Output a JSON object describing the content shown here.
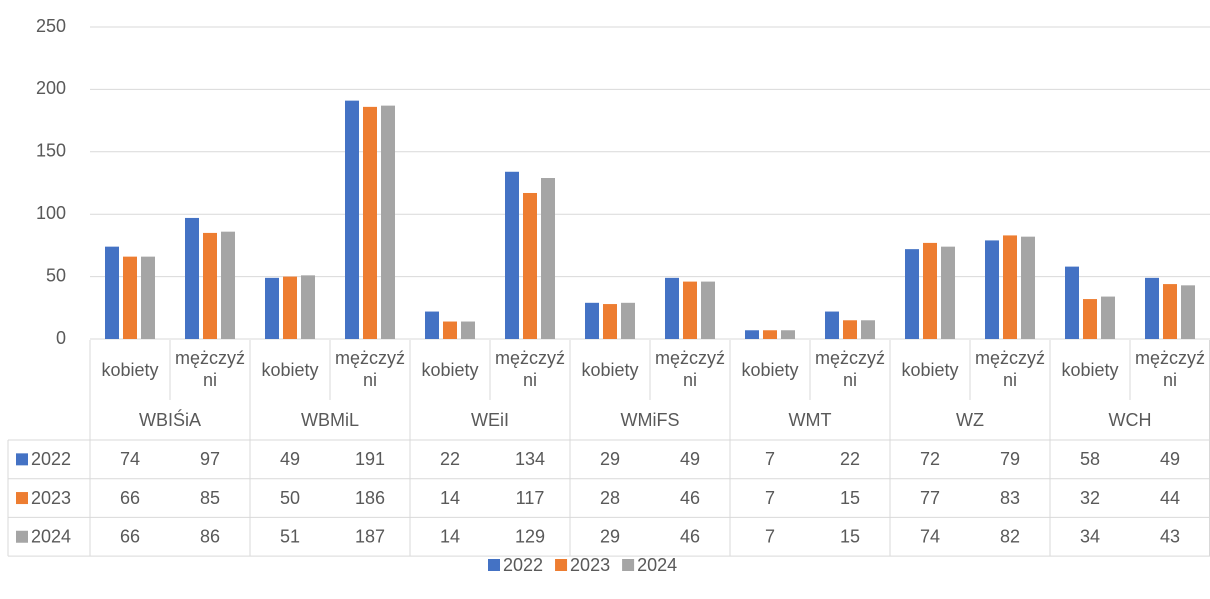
{
  "chart_data": {
    "type": "bar",
    "categories": [
      "kobiety",
      "mężczyźni",
      "kobiety",
      "mężczyźni",
      "kobiety",
      "mężczyźni",
      "kobiety",
      "mężczyźni",
      "kobiety",
      "mężczyźni",
      "kobiety",
      "mężczyźni",
      "kobiety",
      "mężczyźni"
    ],
    "groups": [
      "WBIŚiA",
      "WBMiL",
      "WEiI",
      "WMiFS",
      "WMT",
      "WZ",
      "WCH"
    ],
    "series": [
      {
        "name": "2022",
        "color": "#4472c4",
        "values": [
          74,
          97,
          49,
          191,
          22,
          134,
          29,
          49,
          7,
          22,
          72,
          79,
          58,
          49
        ]
      },
      {
        "name": "2023",
        "color": "#ed7d31",
        "values": [
          66,
          85,
          50,
          186,
          14,
          117,
          28,
          46,
          7,
          15,
          77,
          83,
          32,
          44
        ]
      },
      {
        "name": "2024",
        "color": "#a5a5a5",
        "values": [
          66,
          86,
          51,
          187,
          14,
          129,
          29,
          46,
          7,
          15,
          74,
          82,
          34,
          43
        ]
      }
    ],
    "ylim": [
      0,
      250
    ],
    "yticks": [
      0,
      50,
      100,
      150,
      200,
      250
    ],
    "grid": true,
    "legend": "bottom"
  }
}
